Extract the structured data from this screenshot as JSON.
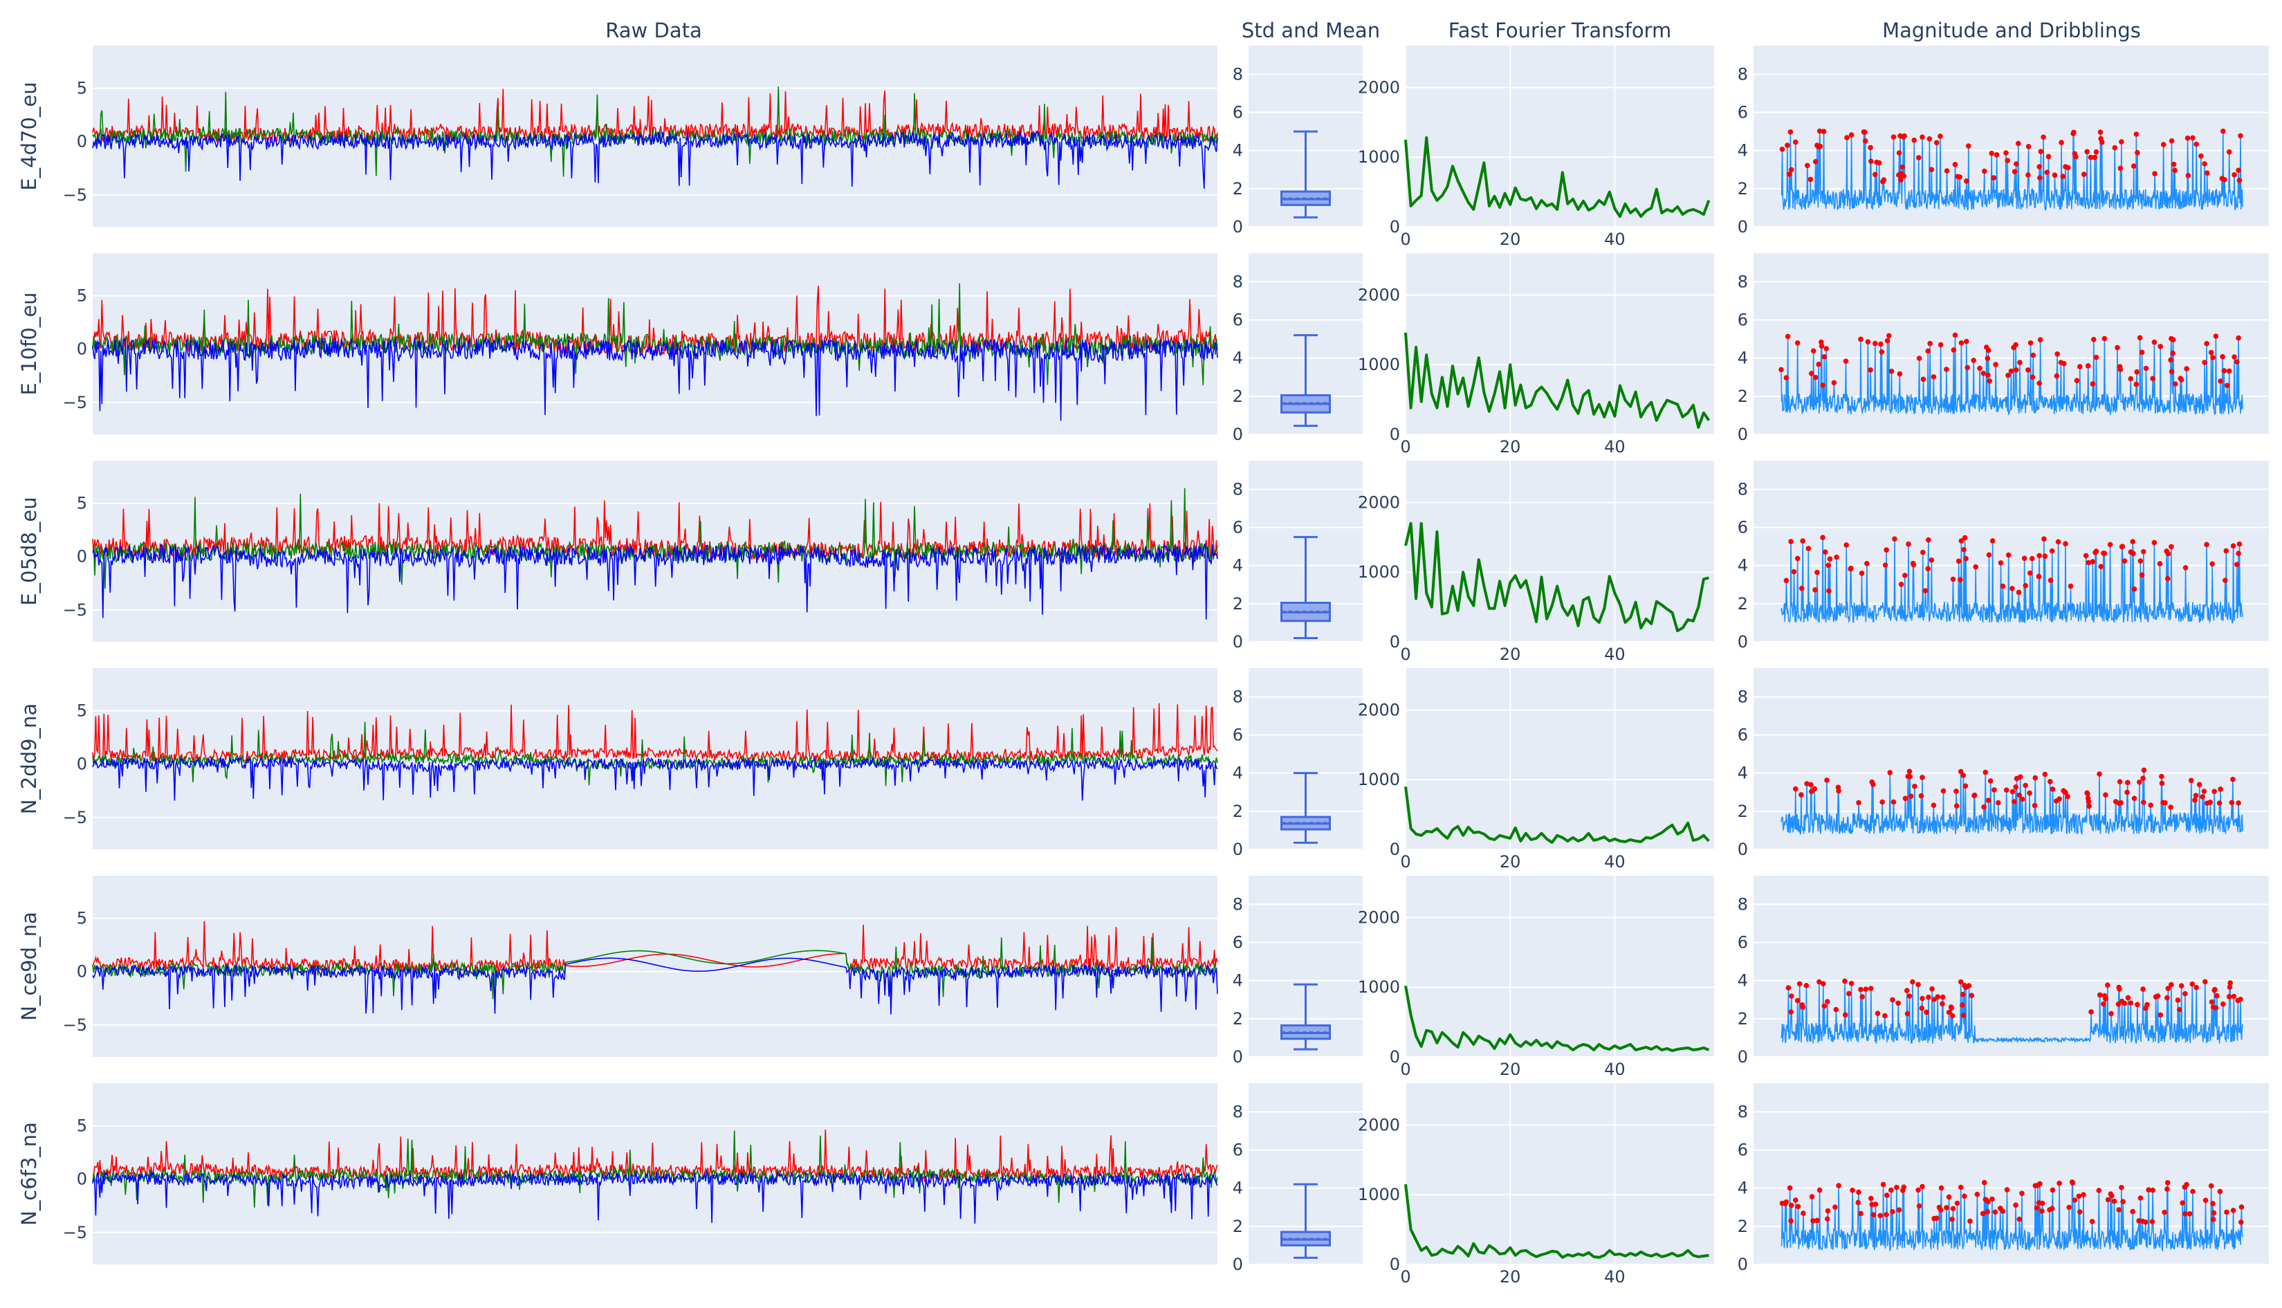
{
  "column_titles": [
    "Raw Data",
    "Std and Mean",
    "Fast Fourier Transform",
    "Magnitude and Dribblings"
  ],
  "colors": {
    "x": "#ff0000",
    "y": "#008000",
    "z": "#0000ff",
    "box": "#4169e1",
    "fft": "#008000",
    "magnitude": "#1e90ff",
    "peaks": "#ff0000",
    "panel": "#e5ecf6"
  },
  "chart_data": [
    {
      "type": "line",
      "panel": "Raw Data",
      "yticks": [
        -5,
        0,
        5
      ],
      "ylim": [
        -8,
        9
      ],
      "series_colors": [
        "#ff0000",
        "#008000",
        "#0000ff"
      ]
    },
    {
      "type": "box",
      "panel": "Std and Mean",
      "yticks": [
        0,
        2,
        4,
        6,
        8
      ],
      "ylim": [
        0,
        9.5
      ]
    },
    {
      "type": "line",
      "panel": "Fast Fourier Transform",
      "xticks": [
        0,
        20,
        40
      ],
      "xlim": [
        0,
        59
      ],
      "yticks": [
        0,
        1000,
        2000
      ],
      "ylim": [
        0,
        2600
      ]
    },
    {
      "type": "line",
      "panel": "Magnitude and Dribblings",
      "yticks": [
        0,
        2,
        4,
        6,
        8
      ],
      "ylim": [
        0,
        9.5
      ]
    }
  ],
  "rows": [
    {
      "label": "E_4d70_eu",
      "seed": 11,
      "amp": 1.0,
      "quiet": [],
      "spike": 0.5,
      "box": {
        "min": 0.5,
        "q1": 1.15,
        "median": 1.45,
        "q3": 1.85,
        "max": 5.0,
        "mean": 1.5
      },
      "fft": [
        1250,
        300,
        380,
        450,
        1280,
        520,
        380,
        450,
        580,
        870,
        660,
        500,
        350,
        250,
        580,
        920,
        300,
        440,
        280,
        480,
        320,
        560,
        400,
        380,
        420,
        260,
        380,
        300,
        330,
        250,
        780,
        330,
        400,
        250,
        370,
        240,
        280,
        380,
        320,
        500,
        260,
        150,
        330,
        200,
        260,
        150,
        230,
        270,
        540,
        200,
        250,
        220,
        290,
        180,
        230,
        250,
        220,
        180,
        380
      ]
    },
    {
      "label": "E_10f0_eu",
      "seed": 23,
      "amp": 1.35,
      "quiet": [],
      "spike": 0.5,
      "box": {
        "min": 0.45,
        "q1": 1.15,
        "median": 1.6,
        "q3": 2.05,
        "max": 5.2,
        "mean": 1.65
      },
      "fft": [
        1460,
        380,
        1250,
        470,
        1140,
        580,
        380,
        820,
        400,
        980,
        580,
        810,
        400,
        720,
        1100,
        600,
        330,
        580,
        900,
        380,
        1000,
        420,
        710,
        380,
        420,
        610,
        680,
        590,
        460,
        360,
        540,
        780,
        420,
        300,
        560,
        630,
        290,
        430,
        250,
        460,
        260,
        700,
        490,
        400,
        610,
        250,
        380,
        460,
        200,
        360,
        490,
        460,
        430,
        250,
        310,
        420,
        100,
        310,
        200
      ]
    },
    {
      "label": "E_05d8_eu",
      "seed": 37,
      "amp": 1.25,
      "quiet": [],
      "spike": 0.5,
      "box": {
        "min": 0.2,
        "q1": 1.1,
        "median": 1.55,
        "q3": 2.05,
        "max": 5.5,
        "mean": 1.6
      },
      "fft": [
        1380,
        1700,
        620,
        1700,
        700,
        500,
        1580,
        400,
        420,
        800,
        450,
        1000,
        650,
        520,
        1180,
        800,
        480,
        480,
        870,
        520,
        850,
        950,
        780,
        880,
        600,
        290,
        930,
        330,
        520,
        800,
        500,
        380,
        520,
        230,
        600,
        640,
        350,
        280,
        480,
        940,
        700,
        540,
        280,
        350,
        570,
        200,
        330,
        260,
        580,
        530,
        470,
        420,
        160,
        200,
        320,
        300,
        500,
        900,
        920
      ]
    },
    {
      "label": "N_2dd9_na",
      "seed": 53,
      "amp": 0.7,
      "quiet": [],
      "spike": 0.9,
      "box": {
        "min": 0.35,
        "q1": 1.05,
        "median": 1.35,
        "q3": 1.7,
        "max": 4.0,
        "mean": 1.4
      },
      "fft": [
        900,
        300,
        220,
        200,
        260,
        250,
        300,
        220,
        160,
        280,
        330,
        200,
        320,
        240,
        250,
        220,
        160,
        140,
        200,
        180,
        160,
        310,
        120,
        230,
        140,
        160,
        230,
        150,
        100,
        200,
        170,
        120,
        170,
        120,
        150,
        230,
        130,
        150,
        180,
        120,
        150,
        120,
        110,
        140,
        120,
        110,
        170,
        160,
        200,
        240,
        300,
        350,
        220,
        260,
        380,
        130,
        150,
        200,
        120
      ]
    },
    {
      "label": "N_ce9d_na",
      "seed": 71,
      "amp": 0.8,
      "quiet": [
        [
          0.42,
          0.67
        ]
      ],
      "spike": 0.6,
      "box": {
        "min": 0.4,
        "q1": 0.95,
        "median": 1.25,
        "q3": 1.65,
        "max": 3.8,
        "mean": 1.3
      },
      "fft": [
        1020,
        600,
        300,
        150,
        380,
        360,
        200,
        350,
        280,
        200,
        140,
        350,
        280,
        180,
        300,
        250,
        220,
        120,
        260,
        190,
        320,
        200,
        150,
        220,
        170,
        240,
        160,
        200,
        130,
        220,
        170,
        160,
        100,
        150,
        180,
        160,
        100,
        180,
        130,
        110,
        160,
        120,
        150,
        180,
        100,
        120,
        140,
        110,
        150,
        100,
        120,
        90,
        110,
        120,
        130,
        100,
        110,
        130,
        100
      ]
    },
    {
      "label": "N_c6f3_na",
      "seed": 89,
      "amp": 0.85,
      "quiet": [],
      "spike": 0.5,
      "box": {
        "min": 0.35,
        "q1": 1.0,
        "median": 1.3,
        "q3": 1.7,
        "max": 4.2,
        "mean": 1.35
      },
      "fft": [
        1150,
        500,
        350,
        200,
        250,
        130,
        150,
        220,
        180,
        160,
        260,
        200,
        120,
        300,
        180,
        160,
        270,
        220,
        150,
        160,
        240,
        130,
        190,
        200,
        150,
        110,
        140,
        160,
        190,
        180,
        100,
        140,
        120,
        150,
        130,
        170,
        110,
        100,
        130,
        200,
        140,
        150,
        120,
        160,
        130,
        180,
        140,
        120,
        150,
        110,
        130,
        160,
        120,
        140,
        200,
        130,
        110,
        120,
        130
      ]
    }
  ]
}
